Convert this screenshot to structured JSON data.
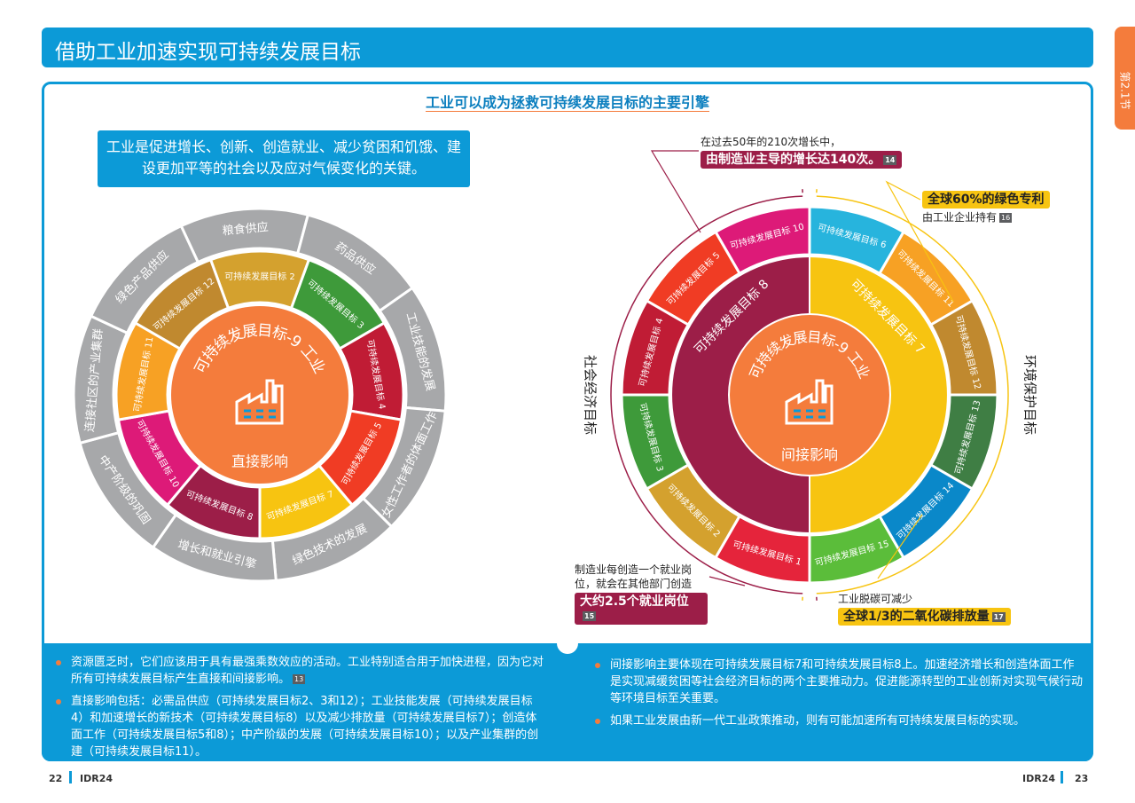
{
  "header": {
    "title": "借助工业加速实现可持续发展目标",
    "section": "第2.1节"
  },
  "subtitle": "工业可以成为拯救可持续发展目标的主要引擎",
  "direct": {
    "callout": "工业是促进增长、创新、创造就业、减少贫困和饥饿、建设更加平等的社会以及应对气候变化的关键。",
    "center_title": "可持续发展目标-9 工业",
    "center_label": "直接影响",
    "center_color": "#f47c3c",
    "goals": [
      {
        "label": "可持续发展目标 2",
        "color": "#d4a12e"
      },
      {
        "label": "可持续发展目标 3",
        "color": "#3e9a3a"
      },
      {
        "label": "可持续发展目标 4",
        "color": "#c01c35"
      },
      {
        "label": "可持续发展目标 5",
        "color": "#f03c24"
      },
      {
        "label": "可持续发展目标 7",
        "color": "#f7c411"
      },
      {
        "label": "可持续发展目标 8",
        "color": "#9c1e48"
      },
      {
        "label": "可持续发展目标 10",
        "color": "#dd1a78"
      },
      {
        "label": "可持续发展目标 11",
        "color": "#f7a124"
      },
      {
        "label": "可持续发展目标 12",
        "color": "#c0892f"
      }
    ],
    "benefits": [
      "粮食供应",
      "药品供应",
      "工业技能的发展",
      "女性工作者的体面工作",
      "绿色技术的发展",
      "增长和就业引擎",
      "中产阶级的巩固",
      "连接社区的产业集群",
      "绿色产品供应"
    ],
    "benefit_color": "#a7a8aa"
  },
  "indirect": {
    "center_title": "可持续发展目标-9 工业",
    "center_label": "间接影响",
    "center_color": "#f47c3c",
    "halves": [
      {
        "label": "可持续发展目标 8",
        "color": "#9c1e48",
        "group": "社会经济目标",
        "goals": [
          {
            "label": "可持续发展目标 10",
            "color": "#dd1a78"
          },
          {
            "label": "可持续发展目标 5",
            "color": "#f03c24"
          },
          {
            "label": "可持续发展目标 4",
            "color": "#c01c35"
          },
          {
            "label": "可持续发展目标 3",
            "color": "#3e9a3a"
          },
          {
            "label": "可持续发展目标 2",
            "color": "#d4a12e"
          },
          {
            "label": "可持续发展目标 1",
            "color": "#e5243b"
          }
        ]
      },
      {
        "label": "可持续发展目标 7",
        "color": "#f7c411",
        "group": "环境保护目标",
        "goals": [
          {
            "label": "可持续发展目标 6",
            "color": "#27b4dd"
          },
          {
            "label": "可持续发展目标 11",
            "color": "#f7a124"
          },
          {
            "label": "可持续发展目标 12",
            "color": "#c0892f"
          },
          {
            "label": "可持续发展目标 13",
            "color": "#3f7e44"
          },
          {
            "label": "可持续发展目标 14",
            "color": "#0a88c9"
          },
          {
            "label": "可持续发展目标 15",
            "color": "#5bbd3a"
          }
        ]
      }
    ],
    "notes": [
      {
        "text": "在过去50年的210次增长中，",
        "highlight": "由制造业主导的增长达140次。",
        "ref": "14",
        "color": "#9c1e48"
      },
      {
        "highlight": "全球60%的绿色专利",
        "text": "由工业企业持有",
        "ref": "16",
        "color": "#f7c411"
      },
      {
        "text": "制造业每创造一个就业岗位，就会在其他部门创造",
        "highlight": "大约2.5个就业岗位",
        "ref": "15",
        "color": "#9c1e48"
      },
      {
        "text": "工业脱碳可减少",
        "highlight": "全球1/3的二氧化碳排放量",
        "ref": "17",
        "color": "#f7c411"
      }
    ]
  },
  "bullets": {
    "left": [
      {
        "text": "资源匮乏时，它们应该用于具有最强乘数效应的活动。工业特别适合用于加快进程，因为它对所有可持续发展目标产生直接和间接影响。",
        "ref": "13"
      },
      {
        "text": "直接影响包括：必需品供应（可持续发展目标2、3和12）；工业技能发展（可持续发展目标4）和加速增长的新技术（可持续发展目标8）以及减少排放量（可持续发展目标7）；创造体面工作（可持续发展目标5和8）；中产阶级的发展（可持续发展目标10）；以及产业集群的创建（可持续发展目标11）。"
      }
    ],
    "right": [
      {
        "text": "间接影响主要体现在可持续发展目标7和可持续发展目标8上。加速经济增长和创造体面工作是实现减缓贫困等社会经济目标的两个主要推动力。促进能源转型的工业创新对实现气候行动等环境目标至关重要。"
      },
      {
        "text": "如果工业发展由新一代工业政策推动，则有可能加速所有可持续发展目标的实现。"
      }
    ]
  },
  "footer": {
    "left_page": "22",
    "left_label": "IDR24",
    "right_label": "IDR24",
    "right_page": "23"
  }
}
